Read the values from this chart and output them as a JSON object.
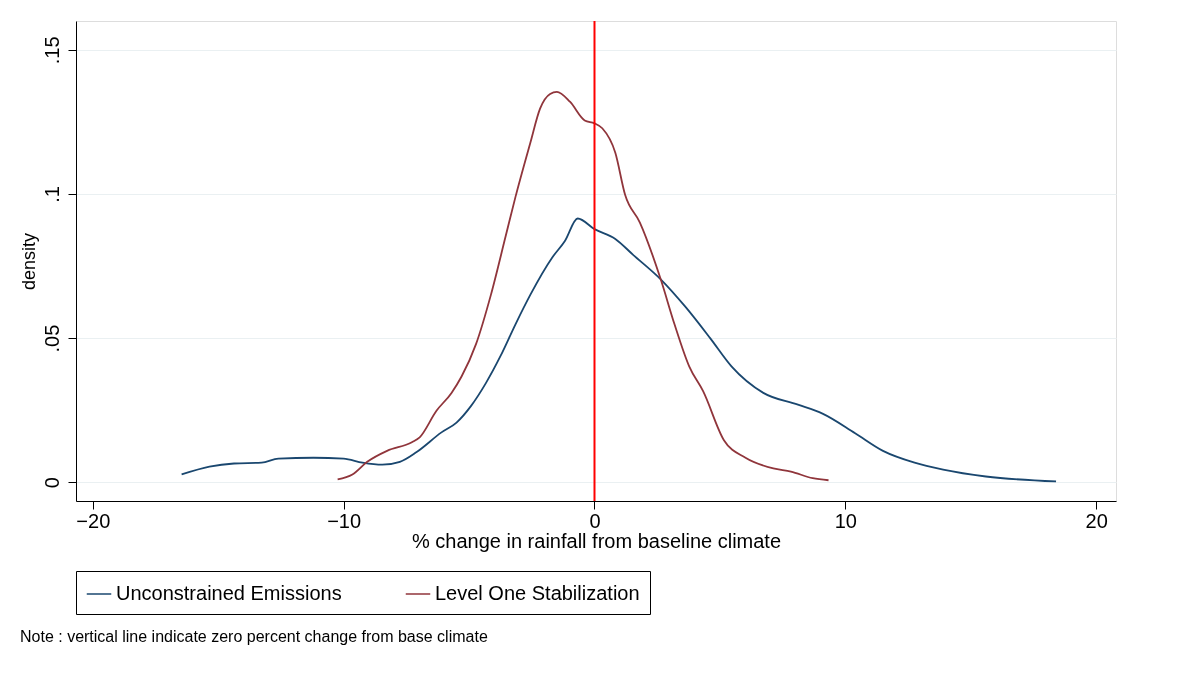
{
  "chart_data": {
    "type": "line",
    "xlabel": "% change in rainfall from baseline climate",
    "ylabel": "density",
    "xlim": [
      -20.67,
      20.79
    ],
    "ylim": [
      -0.0065,
      0.16
    ],
    "xticks": [
      -20,
      -10,
      0,
      10,
      20
    ],
    "yticks": [
      {
        "value": 0,
        "label": "0"
      },
      {
        "value": 0.05,
        "label": ".05"
      },
      {
        "value": 0.1,
        "label": ".1"
      },
      {
        "value": 0.15,
        "label": ".15"
      }
    ],
    "grid": "y",
    "legend": "bottom",
    "line_style": "solid",
    "marker": "none",
    "series": [
      {
        "name": "Unconstrained Emissions",
        "color": "#1a476f",
        "x": [
          -16.46,
          -15.35,
          -14.37,
          -13.27,
          -12.6,
          -11.2,
          -10.0,
          -9.25,
          -8.46,
          -7.76,
          -7.09,
          -6.1,
          -5.5,
          -4.92,
          -4.33,
          -3.74,
          -3.15,
          -2.56,
          -1.69,
          -1.18,
          -0.67,
          0,
          0.83,
          1.54,
          2.64,
          3.62,
          4.61,
          5.47,
          6.73,
          8.11,
          9.09,
          10.39,
          11.5,
          12.76,
          13.9,
          15.6,
          18.4
        ],
        "values": [
          0.0027,
          0.0054,
          0.0065,
          0.0068,
          0.0082,
          0.0085,
          0.0082,
          0.0068,
          0.0061,
          0.0071,
          0.0105,
          0.0173,
          0.0207,
          0.0265,
          0.0344,
          0.0439,
          0.0548,
          0.065,
          0.0779,
          0.0837,
          0.0915,
          0.0878,
          0.0844,
          0.0789,
          0.0704,
          0.0609,
          0.05,
          0.0401,
          0.031,
          0.0269,
          0.0238,
          0.017,
          0.0109,
          0.0068,
          0.0044,
          0.002,
          0.0003
        ]
      },
      {
        "name": "Level One Stabilization",
        "color": "#90353b",
        "x": [
          -10.24,
          -9.65,
          -9.06,
          -8.27,
          -7.28,
          -6.97,
          -6.3,
          -5.7,
          -5.3,
          -4.72,
          -4.13,
          -3.54,
          -3.15,
          -2.56,
          -2.17,
          -1.77,
          -1.5,
          -0.98,
          -0.39,
          0,
          0.31,
          0.83,
          1.22,
          1.81,
          2.64,
          3.19,
          3.78,
          4.33,
          5.16,
          6.02,
          7.13,
          7.83,
          8.7,
          9.33
        ],
        "values": [
          0.001,
          0.0027,
          0.0071,
          0.0109,
          0.0139,
          0.0156,
          0.0248,
          0.031,
          0.0367,
          0.048,
          0.065,
          0.0854,
          0.099,
          0.1177,
          0.1296,
          0.1347,
          0.1354,
          0.132,
          0.1255,
          0.1245,
          0.1228,
          0.1143,
          0.0997,
          0.0901,
          0.0704,
          0.0548,
          0.0401,
          0.0316,
          0.0146,
          0.0085,
          0.0048,
          0.0037,
          0.0014,
          0.0007
        ]
      }
    ],
    "ref_lines": [
      {
        "axis": "x",
        "value": 0,
        "color": "#ff0000",
        "line_style": "solid"
      }
    ],
    "annotations": [
      "Note : vertical line indicate zero percent change from base climate"
    ]
  }
}
